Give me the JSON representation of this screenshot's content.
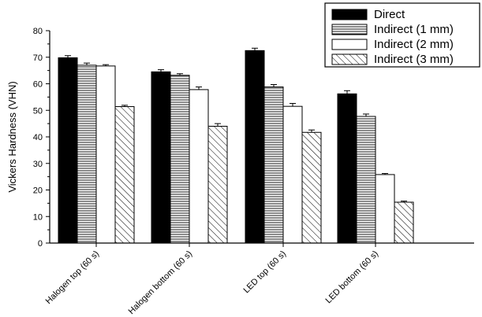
{
  "chart_data": {
    "type": "bar",
    "title": "",
    "xlabel": "",
    "ylabel": "Vickers Hardness (VHN)",
    "ylim": [
      0,
      80
    ],
    "yticks": [
      0,
      10,
      20,
      30,
      40,
      50,
      60,
      70,
      80
    ],
    "categories": [
      "Halogen top (60 s)",
      "Halogen bottom (60 s)",
      "LED top (60 s)",
      "LED bottom (60 s)"
    ],
    "series": [
      {
        "name": "Direct",
        "fill": "solid-black",
        "values": [
          69.8,
          64.5,
          72.5,
          56.2
        ],
        "errors": [
          0.8,
          0.8,
          0.9,
          1.2
        ]
      },
      {
        "name": "Indirect (1 mm)",
        "fill": "horizontal-lines",
        "values": [
          67.0,
          63.2,
          58.8,
          47.7
        ],
        "errors": [
          0.8,
          0.6,
          0.9,
          0.9
        ]
      },
      {
        "name": "Indirect (2 mm)",
        "fill": "white",
        "values": [
          66.7,
          57.8,
          51.5,
          25.8
        ],
        "errors": [
          0.5,
          1.0,
          1.1,
          0.4
        ]
      },
      {
        "name": "Indirect (3 mm)",
        "fill": "diagonal-hatch",
        "values": [
          51.4,
          44.0,
          41.7,
          15.4
        ],
        "errors": [
          0.5,
          1.0,
          0.9,
          0.4
        ]
      }
    ],
    "legend_position": "top-right",
    "grid": false,
    "colors": {
      "bar_outline": "#000000",
      "background": "#ffffff"
    }
  }
}
